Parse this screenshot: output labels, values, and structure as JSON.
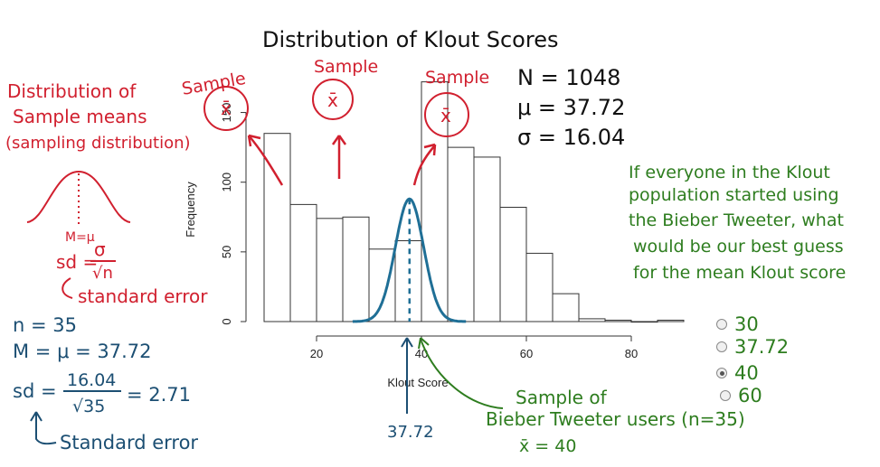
{
  "chart_data": {
    "type": "bar",
    "title": "Distribution of Klout Scores",
    "xlabel": "Klout Score",
    "ylabel": "Frequency",
    "xlim": [
      10,
      90
    ],
    "ylim": [
      0,
      170
    ],
    "x_ticks": [
      20,
      40,
      60,
      80
    ],
    "y_ticks": [
      0,
      50,
      100,
      150
    ],
    "bins": [
      {
        "x0": 10,
        "x1": 15,
        "value": 135
      },
      {
        "x0": 15,
        "x1": 20,
        "value": 84
      },
      {
        "x0": 20,
        "x1": 25,
        "value": 74
      },
      {
        "x0": 25,
        "x1": 30,
        "value": 75
      },
      {
        "x0": 30,
        "x1": 35,
        "value": 52
      },
      {
        "x0": 35,
        "x1": 40,
        "value": 58
      },
      {
        "x0": 40,
        "x1": 45,
        "value": 172
      },
      {
        "x0": 45,
        "x1": 50,
        "value": 125
      },
      {
        "x0": 50,
        "x1": 55,
        "value": 118
      },
      {
        "x0": 55,
        "x1": 60,
        "value": 82
      },
      {
        "x0": 60,
        "x1": 65,
        "value": 49
      },
      {
        "x0": 65,
        "x1": 70,
        "value": 20
      },
      {
        "x0": 70,
        "x1": 75,
        "value": 2
      },
      {
        "x0": 75,
        "x1": 80,
        "value": 1
      },
      {
        "x0": 80,
        "x1": 85,
        "value": 0
      },
      {
        "x0": 85,
        "x1": 90,
        "value": 1
      }
    ],
    "sampling_curve": {
      "mean": 37.72,
      "sd": 2.71,
      "peak_frequency": 88
    }
  },
  "stats": {
    "n": "N = 1048",
    "mu": "μ = 37.72",
    "sigma": "σ = 16.04"
  },
  "annotations": {
    "dist_sample_means": [
      "Distribution of",
      "Sample means",
      "(sampling distribution)"
    ],
    "sample_label": "Sample",
    "xbar": "x̄",
    "m_mu": "M=μ",
    "sd_lhs": "sd =",
    "sd_num": "σ",
    "sd_den": "√n",
    "standard_error_red": "standard error",
    "n35": "n = 35",
    "m_eq": "M = μ = 37.72",
    "sd_calc_lhs": "sd =",
    "sd_calc_num": "16.04",
    "sd_calc_den": "√35",
    "sd_calc_rhs": "= 2.71",
    "standard_error_blue": "Standard error",
    "mean_marker": "37.72",
    "bieber_sample": [
      "Sample of",
      "Bieber Tweeter users (n=35)",
      "x̄ = 40"
    ],
    "question": [
      "If everyone in the Klout",
      "population started using",
      "the Bieber Tweeter, what",
      "would be our best guess",
      "for the mean Klout score"
    ]
  },
  "options": [
    {
      "label": "30",
      "selected": false
    },
    {
      "label": "37.72",
      "selected": false
    },
    {
      "label": "40",
      "selected": true
    },
    {
      "label": "60",
      "selected": false
    }
  ],
  "colors": {
    "red": "#d1202f",
    "green": "#2e7d1f",
    "blue": "#1c4f73",
    "curve": "#1f6f96"
  }
}
